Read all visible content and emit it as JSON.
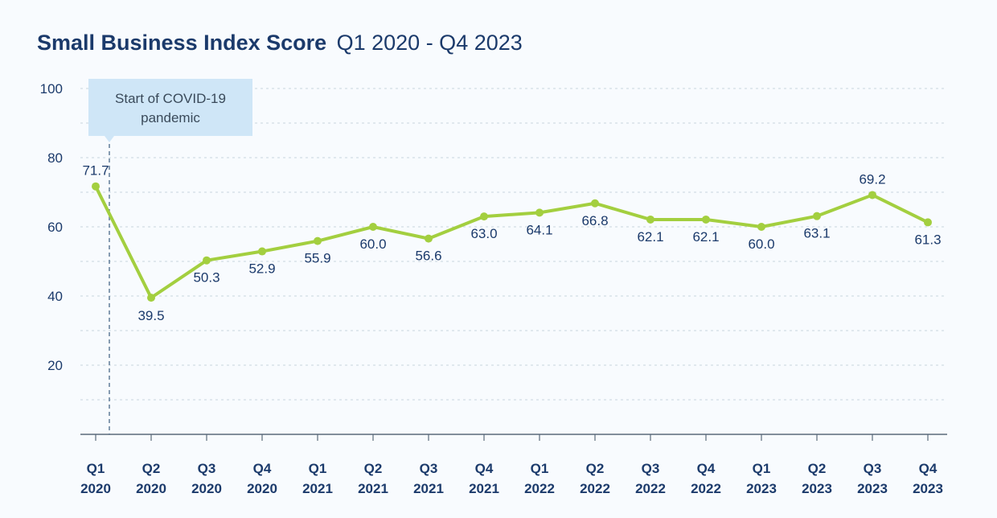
{
  "title": "Small Business Index Score",
  "subtitle": "Q1 2020 - Q4 2023",
  "annotation": {
    "text_line1": "Start of COVID-19",
    "text_line2": "pandemic",
    "at_category_index": 0
  },
  "colors": {
    "line": "#a3cf3f",
    "text": "#1b3a6b",
    "grid": "#c9d4de",
    "annotation_bg": "#cfe6f7",
    "background": "#f8fbfe"
  },
  "chart_data": {
    "type": "line",
    "title": "Small Business Index Score",
    "subtitle": "Q1 2020 - Q4 2023",
    "xlabel": "",
    "ylabel": "",
    "ylim": [
      0,
      100
    ],
    "yticks": [
      20,
      40,
      60,
      80,
      100
    ],
    "grid": "horizontal dashed",
    "legend": "none",
    "categories": [
      [
        "Q1",
        "2020"
      ],
      [
        "Q2",
        "2020"
      ],
      [
        "Q3",
        "2020"
      ],
      [
        "Q4",
        "2020"
      ],
      [
        "Q1",
        "2021"
      ],
      [
        "Q2",
        "2021"
      ],
      [
        "Q3",
        "2021"
      ],
      [
        "Q4",
        "2021"
      ],
      [
        "Q1",
        "2022"
      ],
      [
        "Q2",
        "2022"
      ],
      [
        "Q3",
        "2022"
      ],
      [
        "Q4",
        "2022"
      ],
      [
        "Q1",
        "2023"
      ],
      [
        "Q2",
        "2023"
      ],
      [
        "Q3",
        "2023"
      ],
      [
        "Q4",
        "2023"
      ]
    ],
    "series": [
      {
        "values": [
          71.7,
          39.5,
          50.3,
          52.9,
          55.9,
          60.0,
          56.6,
          63.0,
          64.1,
          66.8,
          62.1,
          62.1,
          60.0,
          63.1,
          69.2,
          61.3
        ],
        "labels": [
          "71.7",
          "39.5",
          "50.3",
          "52.9",
          "55.9",
          "60.0",
          "56.6",
          "63.0",
          "64.1",
          "66.8",
          "62.1",
          "62.1",
          "60.0",
          "63.1",
          "69.2",
          "61.3"
        ]
      }
    ]
  }
}
